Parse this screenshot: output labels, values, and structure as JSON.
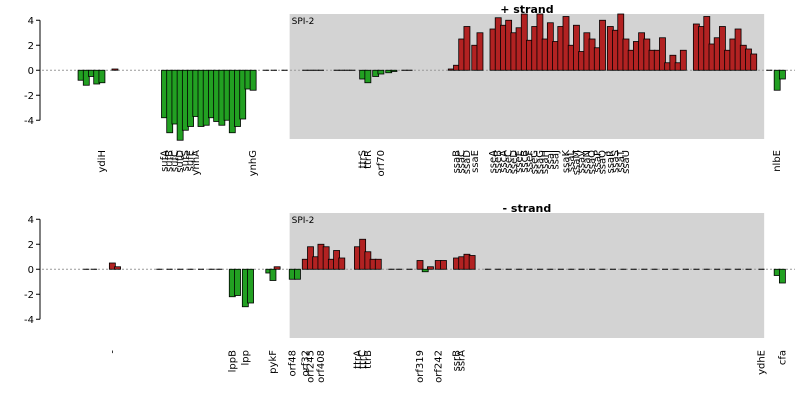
{
  "chart_data": [
    {
      "type": "bar",
      "title": "+ strand",
      "ylim": [
        -5.5,
        4.5
      ],
      "yticks": [
        4,
        2,
        0,
        -2,
        -4
      ],
      "xlim": [
        0,
        140
      ],
      "region": {
        "label": "SPI-2",
        "start": 45,
        "end": 136
      },
      "colors": {
        "positive": "#b22222",
        "negative": "#22a022",
        "region": "#d3d3d3"
      },
      "genes": [
        {
          "x": 5,
          "value": -0.8
        },
        {
          "x": 6,
          "value": -1.2
        },
        {
          "x": 7,
          "value": -0.5
        },
        {
          "x": 8,
          "value": -1.1
        },
        {
          "x": 9,
          "value": -1.0,
          "label": "ydiH"
        },
        {
          "x": 11.5,
          "value": 0.1
        },
        {
          "x": 21,
          "value": -3.8,
          "label": "sufA"
        },
        {
          "x": 22,
          "value": -5.0,
          "label": "sufB"
        },
        {
          "x": 23,
          "value": -4.3,
          "label": "sufC"
        },
        {
          "x": 24,
          "value": -5.6,
          "label": "sufD"
        },
        {
          "x": 25,
          "value": -4.8,
          "label": "sufS"
        },
        {
          "x": 26,
          "value": -4.5,
          "label": "sufE"
        },
        {
          "x": 27,
          "value": -3.7,
          "label": "ynhA"
        },
        {
          "x": 28,
          "value": -4.5
        },
        {
          "x": 29,
          "value": -4.4
        },
        {
          "x": 30,
          "value": -3.8
        },
        {
          "x": 31,
          "value": -4.1
        },
        {
          "x": 32,
          "value": -4.4
        },
        {
          "x": 33,
          "value": -4.0
        },
        {
          "x": 34,
          "value": -5.0
        },
        {
          "x": 35,
          "value": -4.5
        },
        {
          "x": 36,
          "value": -3.9
        },
        {
          "x": 37,
          "value": -1.5
        },
        {
          "x": 38,
          "value": -1.6,
          "label": "ynhG"
        },
        {
          "x": 40.5,
          "value": -0.05
        },
        {
          "x": 42,
          "value": 0.02
        },
        {
          "x": 44,
          "value": 0.0
        },
        {
          "x": 48,
          "value": 0.0
        },
        {
          "x": 49,
          "value": 0.0
        },
        {
          "x": 50,
          "value": 0.0
        },
        {
          "x": 51,
          "value": 0.0
        },
        {
          "x": 54,
          "value": 0.0
        },
        {
          "x": 55,
          "value": 0.0
        },
        {
          "x": 56,
          "value": 0.0
        },
        {
          "x": 57,
          "value": 0.0
        },
        {
          "x": 59,
          "value": -0.7,
          "label": "ttrS"
        },
        {
          "x": 60,
          "value": -1.0,
          "label": "ttrR"
        },
        {
          "x": 61.5,
          "value": -0.5
        },
        {
          "x": 62.5,
          "value": -0.3,
          "label": "orf70"
        },
        {
          "x": 64,
          "value": -0.2
        },
        {
          "x": 65,
          "value": -0.1
        },
        {
          "x": 67,
          "value": 0.0
        },
        {
          "x": 68,
          "value": 0.0
        },
        {
          "x": 76,
          "value": 0.1
        },
        {
          "x": 77,
          "value": 0.4,
          "label": "ssaB"
        },
        {
          "x": 78,
          "value": 2.5,
          "label": "ssaC"
        },
        {
          "x": 79,
          "value": 3.5,
          "label": "ssaD"
        },
        {
          "x": 80.5,
          "value": 2.0,
          "label": "ssaE"
        },
        {
          "x": 81.5,
          "value": 3.0
        },
        {
          "x": 84,
          "value": 3.3,
          "label": "sseA"
        },
        {
          "x": 85,
          "value": 4.2,
          "label": "sseB"
        },
        {
          "x": 86,
          "value": 3.6,
          "label": "sscA"
        },
        {
          "x": 87,
          "value": 4.0,
          "label": "sseC"
        },
        {
          "x": 88,
          "value": 3.0,
          "label": "sseD"
        },
        {
          "x": 89,
          "value": 3.4,
          "label": "sseE"
        },
        {
          "x": 90,
          "value": 4.5,
          "label": "sscB"
        },
        {
          "x": 91,
          "value": 2.4,
          "label": "sseF"
        },
        {
          "x": 92,
          "value": 3.5,
          "label": "sseG"
        },
        {
          "x": 93,
          "value": 4.5,
          "label": "ssaG"
        },
        {
          "x": 94,
          "value": 2.5,
          "label": "ssaH"
        },
        {
          "x": 95,
          "value": 3.8,
          "label": "ssaI"
        },
        {
          "x": 96,
          "value": 2.3,
          "label": "ssaJ"
        },
        {
          "x": 97,
          "value": 3.5
        },
        {
          "x": 98,
          "value": 4.3,
          "label": "ssaK"
        },
        {
          "x": 99,
          "value": 2.0,
          "label": "ssaL"
        },
        {
          "x": 100,
          "value": 3.6,
          "label": "ssaM"
        },
        {
          "x": 101,
          "value": 1.5,
          "label": "ssaV"
        },
        {
          "x": 102,
          "value": 3.0,
          "label": "ssaN"
        },
        {
          "x": 103,
          "value": 2.5,
          "label": "ssaO"
        },
        {
          "x": 104,
          "value": 1.8,
          "label": "ssaP"
        },
        {
          "x": 105,
          "value": 4.0,
          "label": "ssaQ"
        },
        {
          "x": 106.5,
          "value": 3.5,
          "label": "ssaR"
        },
        {
          "x": 107.5,
          "value": 3.2,
          "label": "ssaS"
        },
        {
          "x": 108.5,
          "value": 4.5,
          "label": "ssaT"
        },
        {
          "x": 109.5,
          "value": 2.5,
          "label": "ssaU"
        },
        {
          "x": 110.5,
          "value": 1.6
        },
        {
          "x": 111.5,
          "value": 2.3
        },
        {
          "x": 112.5,
          "value": 3.0
        },
        {
          "x": 113.5,
          "value": 2.5
        },
        {
          "x": 114.5,
          "value": 1.6
        },
        {
          "x": 115.5,
          "value": 1.6
        },
        {
          "x": 116.5,
          "value": 2.6
        },
        {
          "x": 117.5,
          "value": 0.6
        },
        {
          "x": 118.5,
          "value": 1.2
        },
        {
          "x": 119.5,
          "value": 0.6
        },
        {
          "x": 120.5,
          "value": 1.6
        },
        {
          "x": 123,
          "value": 3.7
        },
        {
          "x": 124,
          "value": 3.5
        },
        {
          "x": 125,
          "value": 4.3
        },
        {
          "x": 126,
          "value": 2.1
        },
        {
          "x": 127,
          "value": 2.6
        },
        {
          "x": 128,
          "value": 3.5
        },
        {
          "x": 129,
          "value": 1.6
        },
        {
          "x": 130,
          "value": 2.5
        },
        {
          "x": 131,
          "value": 3.3
        },
        {
          "x": 132,
          "value": 2.0
        },
        {
          "x": 133,
          "value": 1.7
        },
        {
          "x": 134,
          "value": 1.3
        },
        {
          "x": 137,
          "value": 0.0
        },
        {
          "x": 138.5,
          "value": -1.6,
          "label": "nlbE"
        },
        {
          "x": 139.5,
          "value": -0.7
        }
      ]
    },
    {
      "type": "bar",
      "title": "- strand",
      "ylim": [
        -5.5,
        4.5
      ],
      "yticks": [
        4,
        2,
        0,
        -2,
        -4
      ],
      "xlim": [
        0,
        140
      ],
      "region": {
        "label": "SPI-2",
        "start": 45,
        "end": 136
      },
      "colors": {
        "positive": "#b22222",
        "negative": "#22a022",
        "region": "#d3d3d3"
      },
      "genes": [
        {
          "x": 6,
          "value": 0.0
        },
        {
          "x": 7.5,
          "value": 0.0
        },
        {
          "x": 11,
          "value": 0.5,
          "label": "-"
        },
        {
          "x": 12,
          "value": 0.2
        },
        {
          "x": 20,
          "value": 0.0
        },
        {
          "x": 22,
          "value": 0.0
        },
        {
          "x": 24,
          "value": 0.0
        },
        {
          "x": 26,
          "value": 0.0
        },
        {
          "x": 28,
          "value": 0.0
        },
        {
          "x": 30,
          "value": 0.0
        },
        {
          "x": 31.5,
          "value": 0.0
        },
        {
          "x": 34,
          "value": -2.2,
          "label": "lppB"
        },
        {
          "x": 35,
          "value": -2.1
        },
        {
          "x": 36.5,
          "value": -3.0,
          "label": "lpp"
        },
        {
          "x": 37.5,
          "value": -2.7
        },
        {
          "x": 41,
          "value": -0.3
        },
        {
          "x": 41.8,
          "value": -0.9,
          "label": "pykF"
        },
        {
          "x": 42.6,
          "value": 0.2
        },
        {
          "x": 45.5,
          "value": -0.8,
          "label": "orf48"
        },
        {
          "x": 46.5,
          "value": -0.8
        },
        {
          "x": 48,
          "value": 0.8,
          "label": "orf32"
        },
        {
          "x": 49,
          "value": 1.8,
          "label": "orf245"
        },
        {
          "x": 50,
          "value": 1.0
        },
        {
          "x": 51,
          "value": 2.0,
          "label": "orf408"
        },
        {
          "x": 52,
          "value": 1.8
        },
        {
          "x": 53,
          "value": 0.8
        },
        {
          "x": 54,
          "value": 1.5
        },
        {
          "x": 55,
          "value": 0.9
        },
        {
          "x": 58,
          "value": 1.8,
          "label": "ttrA"
        },
        {
          "x": 59,
          "value": 2.4,
          "label": "ttrC"
        },
        {
          "x": 60,
          "value": 1.4,
          "label": "ttrB"
        },
        {
          "x": 61,
          "value": 0.8
        },
        {
          "x": 62,
          "value": 0.8
        },
        {
          "x": 64.5,
          "value": 0.0
        },
        {
          "x": 66,
          "value": 0.0
        },
        {
          "x": 68,
          "value": 0.0
        },
        {
          "x": 70,
          "value": 0.7,
          "label": "orf319"
        },
        {
          "x": 71,
          "value": -0.2
        },
        {
          "x": 72,
          "value": 0.2
        },
        {
          "x": 73.5,
          "value": 0.7,
          "label": "orf242"
        },
        {
          "x": 74.5,
          "value": 0.7
        },
        {
          "x": 77,
          "value": 0.9,
          "label": "ssrB"
        },
        {
          "x": 78,
          "value": 1.0,
          "label": "ssrA"
        },
        {
          "x": 79,
          "value": 1.2
        },
        {
          "x": 80,
          "value": 1.1
        },
        {
          "x": 83,
          "value": 0.0
        },
        {
          "x": 85,
          "value": 0.0
        },
        {
          "x": 87,
          "value": 0.0
        },
        {
          "x": 89,
          "value": 0.0
        },
        {
          "x": 91,
          "value": 0.0
        },
        {
          "x": 93,
          "value": 0.0
        },
        {
          "x": 95,
          "value": 0.0
        },
        {
          "x": 97,
          "value": 0.0
        },
        {
          "x": 99,
          "value": 0.0
        },
        {
          "x": 101,
          "value": 0.0
        },
        {
          "x": 103,
          "value": 0.0
        },
        {
          "x": 105,
          "value": 0.0
        },
        {
          "x": 107,
          "value": 0.0
        },
        {
          "x": 109,
          "value": 0.0
        },
        {
          "x": 111,
          "value": 0.0
        },
        {
          "x": 113,
          "value": 0.0
        },
        {
          "x": 115,
          "value": 0.0
        },
        {
          "x": 117,
          "value": 0.0
        },
        {
          "x": 119,
          "value": 0.0
        },
        {
          "x": 121,
          "value": 0.0
        },
        {
          "x": 123,
          "value": 0.0
        },
        {
          "x": 125,
          "value": 0.0
        },
        {
          "x": 127,
          "value": 0.0
        },
        {
          "x": 129,
          "value": 0.0
        },
        {
          "x": 131,
          "value": 0.0
        },
        {
          "x": 133,
          "value": 0.0
        },
        {
          "x": 135.5,
          "value": 0.0,
          "label": "ydhE"
        },
        {
          "x": 138.5,
          "value": -0.5
        },
        {
          "x": 139.5,
          "value": -1.1,
          "label": "cfa"
        }
      ]
    }
  ]
}
